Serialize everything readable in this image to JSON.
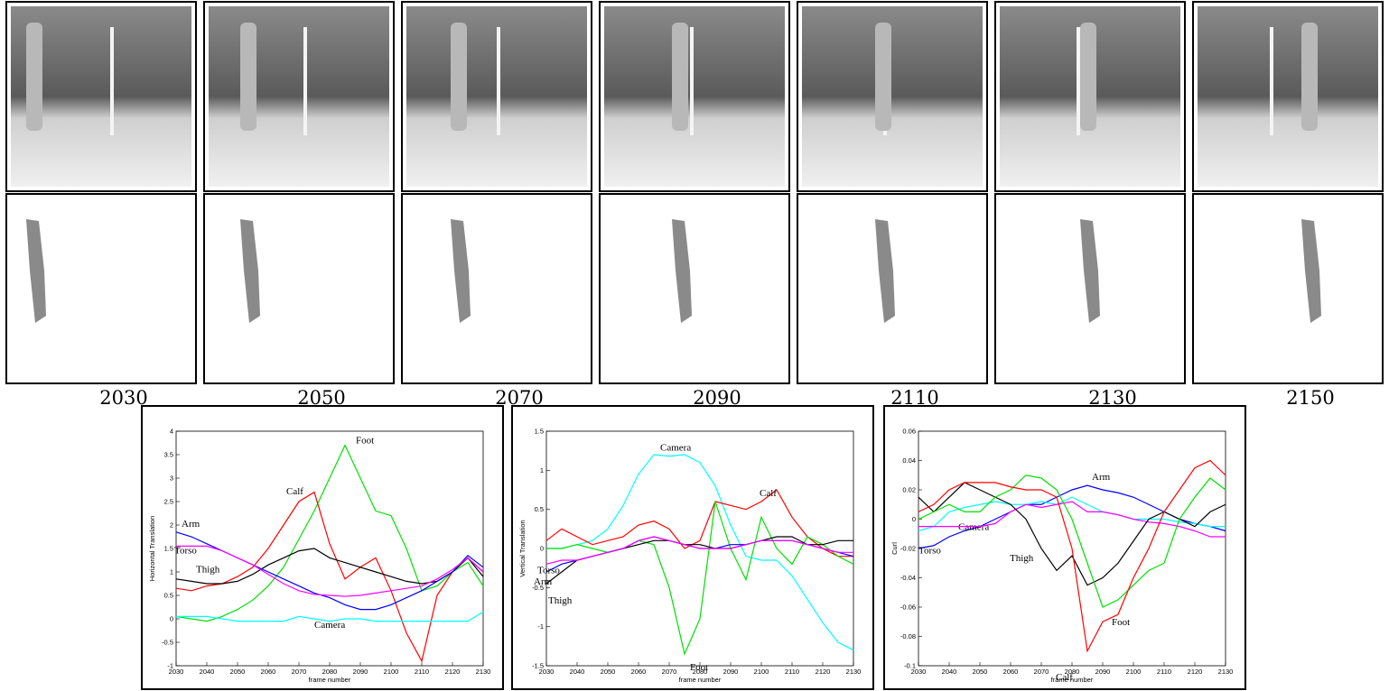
{
  "figure": {
    "frames": [
      "2030",
      "2050",
      "2070",
      "2090",
      "2110",
      "2130",
      "2150"
    ]
  },
  "chart_data": [
    {
      "type": "line",
      "y_label": "Horizontal Translation",
      "x_label": "frame number",
      "xlim": [
        2030,
        2130
      ],
      "ylim": [
        -1,
        4
      ],
      "xticks": [
        2030,
        2040,
        2050,
        2060,
        2070,
        2080,
        2090,
        2100,
        2110,
        2120,
        2130
      ],
      "yticks": [
        -1,
        -0.5,
        0,
        0.5,
        1,
        1.5,
        2,
        2.5,
        3,
        3.5,
        4
      ],
      "x": [
        2030,
        2035,
        2040,
        2045,
        2050,
        2055,
        2060,
        2065,
        2070,
        2075,
        2080,
        2085,
        2090,
        2095,
        2100,
        2105,
        2110,
        2115,
        2120,
        2125,
        2130
      ],
      "series": [
        {
          "name": "Foot",
          "color": "#00e000",
          "values": [
            0.05,
            0.0,
            -0.05,
            0.05,
            0.2,
            0.4,
            0.7,
            1.1,
            1.7,
            2.3,
            3.0,
            3.7,
            3.0,
            2.3,
            2.2,
            1.5,
            0.6,
            0.7,
            1.0,
            1.2,
            0.7
          ]
        },
        {
          "name": "Calf",
          "color": "#ff0000",
          "values": [
            0.65,
            0.6,
            0.7,
            0.75,
            0.9,
            1.1,
            1.5,
            2.0,
            2.5,
            2.7,
            1.6,
            0.85,
            1.1,
            1.3,
            0.6,
            -0.3,
            -0.9,
            0.5,
            1.0,
            1.3,
            1.0
          ]
        },
        {
          "name": "Thigh",
          "color": "#000000",
          "values": [
            0.85,
            0.8,
            0.75,
            0.75,
            0.8,
            0.95,
            1.15,
            1.3,
            1.45,
            1.5,
            1.3,
            1.2,
            1.1,
            1.0,
            0.9,
            0.8,
            0.75,
            0.8,
            1.0,
            1.3,
            0.9
          ]
        },
        {
          "name": "Arm",
          "color": "#0000ff",
          "values": [
            1.85,
            1.75,
            1.6,
            1.45,
            1.3,
            1.15,
            1.0,
            0.85,
            0.7,
            0.55,
            0.45,
            0.3,
            0.2,
            0.2,
            0.3,
            0.45,
            0.6,
            0.8,
            1.0,
            1.35,
            1.1
          ]
        },
        {
          "name": "Torso",
          "color": "#ff00ff",
          "values": [
            1.55,
            1.55,
            1.55,
            1.45,
            1.3,
            1.15,
            0.95,
            0.75,
            0.6,
            0.52,
            0.5,
            0.48,
            0.5,
            0.55,
            0.6,
            0.65,
            0.7,
            0.85,
            1.05,
            1.3,
            1.0
          ]
        },
        {
          "name": "Camera",
          "color": "#00ffff",
          "values": [
            0.05,
            0.05,
            0.05,
            0.0,
            -0.05,
            -0.05,
            -0.05,
            -0.05,
            0.05,
            0.0,
            -0.05,
            0.0,
            0.0,
            -0.05,
            -0.05,
            -0.05,
            -0.05,
            -0.05,
            -0.05,
            -0.05,
            0.15
          ]
        }
      ]
    },
    {
      "type": "line",
      "y_label": "Vertical Translation",
      "x_label": "frame number",
      "xlim": [
        2030,
        2130
      ],
      "ylim": [
        -1.5,
        1.5
      ],
      "xticks": [
        2030,
        2040,
        2050,
        2060,
        2070,
        2080,
        2090,
        2100,
        2110,
        2120,
        2130
      ],
      "yticks": [
        -1.5,
        -1,
        -0.5,
        0,
        0.5,
        1,
        1.5
      ],
      "x": [
        2030,
        2035,
        2040,
        2045,
        2050,
        2055,
        2060,
        2065,
        2070,
        2075,
        2080,
        2085,
        2090,
        2095,
        2100,
        2105,
        2110,
        2115,
        2120,
        2125,
        2130
      ],
      "series": [
        {
          "name": "Camera",
          "color": "#00ffff",
          "values": [
            0.0,
            0.0,
            0.05,
            0.1,
            0.25,
            0.55,
            0.95,
            1.2,
            1.18,
            1.2,
            1.1,
            0.8,
            0.3,
            -0.1,
            -0.15,
            -0.15,
            -0.35,
            -0.65,
            -0.95,
            -1.2,
            -1.3
          ]
        },
        {
          "name": "Calf",
          "color": "#ff0000",
          "values": [
            0.1,
            0.25,
            0.15,
            0.05,
            0.1,
            0.15,
            0.3,
            0.35,
            0.25,
            0.0,
            0.1,
            0.6,
            0.55,
            0.5,
            0.6,
            0.75,
            0.4,
            0.15,
            0.0,
            -0.1,
            -0.1
          ]
        },
        {
          "name": "Foot",
          "color": "#00e000",
          "values": [
            0.0,
            0.0,
            0.05,
            0.0,
            -0.05,
            0.0,
            0.1,
            0.05,
            -0.5,
            -1.35,
            -0.9,
            0.6,
            0.0,
            -0.4,
            0.4,
            0.0,
            -0.2,
            0.15,
            0.05,
            -0.1,
            -0.2
          ]
        },
        {
          "name": "Thigh",
          "color": "#000000",
          "values": [
            -0.45,
            -0.3,
            -0.15,
            -0.1,
            -0.05,
            0.0,
            0.05,
            0.1,
            0.1,
            0.05,
            0.05,
            0.0,
            0.0,
            0.05,
            0.1,
            0.15,
            0.15,
            0.05,
            0.05,
            0.1,
            0.1
          ]
        },
        {
          "name": "Arm",
          "color": "#0000ff",
          "values": [
            -0.3,
            -0.2,
            -0.15,
            -0.1,
            -0.05,
            0.0,
            0.1,
            0.15,
            0.1,
            0.05,
            0.0,
            0.0,
            0.05,
            0.05,
            0.1,
            0.1,
            0.1,
            0.05,
            0.0,
            -0.05,
            -0.1
          ]
        },
        {
          "name": "Torso",
          "color": "#ff00ff",
          "values": [
            -0.2,
            -0.15,
            -0.15,
            -0.1,
            -0.05,
            0.0,
            0.1,
            0.15,
            0.1,
            0.05,
            0.0,
            0.0,
            0.0,
            0.05,
            0.1,
            0.1,
            0.1,
            0.05,
            0.0,
            -0.05,
            -0.05
          ]
        }
      ]
    },
    {
      "type": "line",
      "y_label": "Curl",
      "x_label": "frame number",
      "xlim": [
        2030,
        2130
      ],
      "ylim": [
        -0.1,
        0.06
      ],
      "xticks": [
        2030,
        2040,
        2050,
        2060,
        2070,
        2080,
        2090,
        2100,
        2110,
        2120,
        2130
      ],
      "yticks": [
        -0.1,
        -0.08,
        -0.06,
        -0.04,
        -0.02,
        0,
        0.02,
        0.04,
        0.06
      ],
      "x": [
        2030,
        2035,
        2040,
        2045,
        2050,
        2055,
        2060,
        2065,
        2070,
        2075,
        2080,
        2085,
        2090,
        2095,
        2100,
        2105,
        2110,
        2115,
        2120,
        2125,
        2130
      ],
      "series": [
        {
          "name": "Arm",
          "color": "#0000ff",
          "values": [
            -0.02,
            -0.018,
            -0.012,
            -0.008,
            -0.005,
            0.0,
            0.005,
            0.01,
            0.01,
            0.015,
            0.02,
            0.023,
            0.02,
            0.018,
            0.015,
            0.01,
            0.005,
            0.0,
            -0.003,
            -0.005,
            -0.008
          ]
        },
        {
          "name": "Camera",
          "color": "#00ffff",
          "values": [
            -0.008,
            -0.005,
            0.005,
            0.008,
            0.01,
            0.012,
            0.01,
            0.01,
            0.012,
            0.01,
            0.015,
            0.01,
            0.005,
            0.003,
            0.0,
            0.0,
            0.0,
            -0.002,
            -0.003,
            -0.005,
            -0.005
          ]
        },
        {
          "name": "Torso",
          "color": "#ff00ff",
          "values": [
            -0.005,
            -0.005,
            -0.005,
            -0.005,
            -0.005,
            -0.003,
            0.005,
            0.01,
            0.008,
            0.01,
            0.012,
            0.005,
            0.005,
            0.003,
            0.0,
            -0.002,
            -0.003,
            -0.005,
            -0.008,
            -0.012,
            -0.012
          ]
        },
        {
          "name": "Thigh",
          "color": "#000000",
          "values": [
            0.015,
            0.005,
            0.015,
            0.025,
            0.02,
            0.015,
            0.01,
            0.0,
            -0.02,
            -0.035,
            -0.025,
            -0.045,
            -0.04,
            -0.03,
            -0.015,
            0.0,
            0.005,
            0.0,
            -0.005,
            0.005,
            0.01
          ]
        },
        {
          "name": "Foot",
          "color": "#00e000",
          "values": [
            0.0,
            0.005,
            0.01,
            0.005,
            0.005,
            0.015,
            0.02,
            0.03,
            0.028,
            0.02,
            0.0,
            -0.03,
            -0.06,
            -0.055,
            -0.045,
            -0.035,
            -0.03,
            0.0,
            0.015,
            0.028,
            0.02
          ]
        },
        {
          "name": "Calf",
          "color": "#ff0000",
          "values": [
            0.005,
            0.01,
            0.02,
            0.025,
            0.025,
            0.025,
            0.022,
            0.02,
            0.02,
            0.015,
            -0.02,
            -0.09,
            -0.07,
            -0.065,
            -0.04,
            -0.02,
            0.005,
            0.02,
            0.035,
            0.04,
            0.03
          ]
        }
      ]
    }
  ]
}
